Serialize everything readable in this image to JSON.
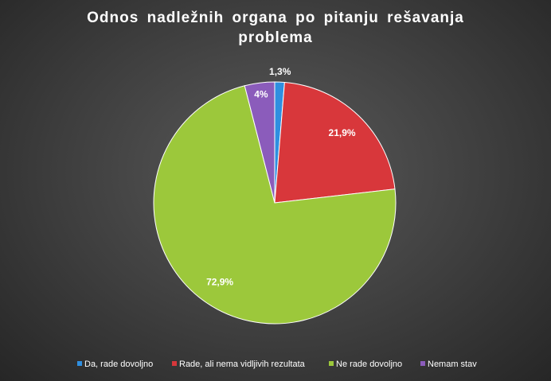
{
  "chart_data": {
    "type": "pie",
    "title": "Odnos nadležnih organa po pitanju rešavanja problema",
    "categories": [
      "Da, rade dovoljno",
      "Rade, ali nema vidljivih rezultata",
      "Ne rade dovoljno",
      "Nemam stav"
    ],
    "values": [
      1.3,
      21.9,
      72.9,
      4
    ],
    "value_labels": [
      "1,3%",
      "21,9%",
      "72,9%",
      "4%"
    ],
    "colors": [
      "#2f8fe0",
      "#d8373b",
      "#9cc83b",
      "#8b5cbb"
    ],
    "legend": "bottom"
  }
}
